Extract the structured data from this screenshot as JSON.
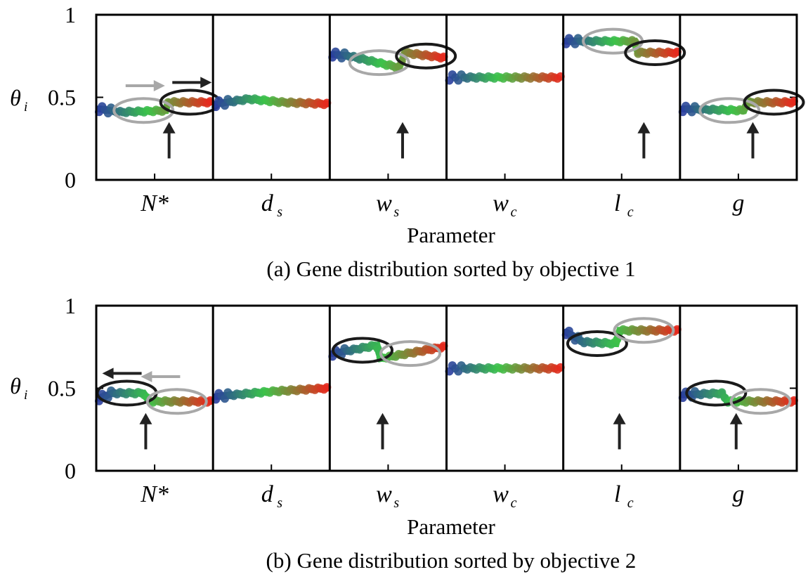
{
  "colors": {
    "low": "#2a3f9e",
    "mid": "#3cc44a",
    "high": "#e62a1e",
    "black_ellipse": "#1a1a1a",
    "gray_ellipse": "#a8a8a8"
  },
  "chart_data": [
    {
      "type": "scatter",
      "caption": "(a) Gene distribution sorted by objective 1",
      "xlabel": "Parameter",
      "ylabel": "θ",
      "ylabel_sub": "i",
      "ylim": [
        0,
        1
      ],
      "yticks": [
        "0",
        "0.5",
        "1"
      ],
      "ytick_values": [
        0,
        0.5,
        1
      ],
      "color_scale": "individuals sorted by objective value: blue → green → red",
      "panels": [
        {
          "param": "N*",
          "sub": "",
          "segments": [
            [
              0.0,
              0.43
            ],
            [
              0.2,
              0.41
            ],
            [
              0.6,
              0.42
            ],
            [
              0.62,
              0.47
            ],
            [
              1.0,
              0.47
            ]
          ],
          "ellipses": [
            {
              "color": "gray",
              "cx": 0.4,
              "cy": 0.42
            },
            {
              "color": "black",
              "cx": 0.82,
              "cy": 0.47
            }
          ],
          "arrows": [
            {
              "dir": "right",
              "color": "gray",
              "y": 0.57
            },
            {
              "dir": "right",
              "color": "black",
              "y": 0.59
            },
            {
              "dir": "up",
              "color": "black",
              "x": 0.63
            }
          ]
        },
        {
          "param": "d",
          "sub": "s",
          "segments": [
            [
              0.0,
              0.46
            ],
            [
              0.3,
              0.49
            ],
            [
              0.6,
              0.47
            ],
            [
              1.0,
              0.46
            ]
          ],
          "ellipses": [],
          "arrows": []
        },
        {
          "param": "w",
          "sub": "s",
          "segments": [
            [
              0.0,
              0.76
            ],
            [
              0.15,
              0.75
            ],
            [
              0.6,
              0.68
            ],
            [
              0.65,
              0.77
            ],
            [
              1.0,
              0.74
            ]
          ],
          "ellipses": [
            {
              "color": "gray",
              "cx": 0.42,
              "cy": 0.71
            },
            {
              "color": "black",
              "cx": 0.84,
              "cy": 0.75
            }
          ],
          "arrows": [
            {
              "dir": "up",
              "color": "black",
              "x": 0.63
            }
          ]
        },
        {
          "param": "w",
          "sub": "c",
          "segments": [
            [
              0.0,
              0.62
            ],
            [
              1.0,
              0.62
            ]
          ],
          "ellipses": [],
          "arrows": []
        },
        {
          "param": "l",
          "sub": "c",
          "segments": [
            [
              0.0,
              0.84
            ],
            [
              0.62,
              0.84
            ],
            [
              0.64,
              0.77
            ],
            [
              1.0,
              0.77
            ]
          ],
          "ellipses": [
            {
              "color": "gray",
              "cx": 0.42,
              "cy": 0.84
            },
            {
              "color": "black",
              "cx": 0.8,
              "cy": 0.77
            }
          ],
          "arrows": [
            {
              "dir": "up",
              "color": "black",
              "x": 0.7
            }
          ]
        },
        {
          "param": "g",
          "sub": "",
          "segments": [
            [
              0.0,
              0.43
            ],
            [
              0.55,
              0.42
            ],
            [
              0.58,
              0.47
            ],
            [
              1.0,
              0.47
            ]
          ],
          "ellipses": [
            {
              "color": "gray",
              "cx": 0.42,
              "cy": 0.42
            },
            {
              "color": "black",
              "cx": 0.82,
              "cy": 0.47
            }
          ],
          "arrows": [
            {
              "dir": "up",
              "color": "black",
              "x": 0.63
            }
          ]
        }
      ]
    },
    {
      "type": "scatter",
      "caption": "(b) Gene distribution sorted by objective 2",
      "xlabel": "Parameter",
      "ylabel": "θ",
      "ylabel_sub": "i",
      "ylim": [
        0,
        1
      ],
      "yticks": [
        "0",
        "0.5",
        "1"
      ],
      "ytick_values": [
        0,
        0.5,
        1
      ],
      "color_scale": "individuals sorted by objective value: blue → green → red",
      "panels": [
        {
          "param": "N*",
          "sub": "",
          "segments": [
            [
              0.0,
              0.44
            ],
            [
              0.12,
              0.47
            ],
            [
              0.4,
              0.47
            ],
            [
              0.45,
              0.42
            ],
            [
              1.0,
              0.42
            ]
          ],
          "ellipses": [
            {
              "color": "black",
              "cx": 0.25,
              "cy": 0.47
            },
            {
              "color": "gray",
              "cx": 0.7,
              "cy": 0.42
            }
          ],
          "arrows": [
            {
              "dir": "left",
              "color": "gray",
              "y": 0.57
            },
            {
              "dir": "left",
              "color": "black",
              "y": 0.59
            },
            {
              "dir": "up",
              "color": "black",
              "x": 0.42
            }
          ]
        },
        {
          "param": "d",
          "sub": "s",
          "segments": [
            [
              0.0,
              0.45
            ],
            [
              0.5,
              0.48
            ],
            [
              1.0,
              0.5
            ]
          ],
          "ellipses": [],
          "arrows": []
        },
        {
          "param": "w",
          "sub": "s",
          "segments": [
            [
              0.0,
              0.71
            ],
            [
              0.4,
              0.76
            ],
            [
              0.43,
              0.68
            ],
            [
              1.0,
              0.75
            ]
          ],
          "ellipses": [
            {
              "color": "black",
              "cx": 0.27,
              "cy": 0.73
            },
            {
              "color": "gray",
              "cx": 0.7,
              "cy": 0.71
            }
          ],
          "arrows": [
            {
              "dir": "up",
              "color": "black",
              "x": 0.45
            }
          ]
        },
        {
          "param": "w",
          "sub": "c",
          "segments": [
            [
              0.0,
              0.62
            ],
            [
              1.0,
              0.62
            ]
          ],
          "ellipses": [],
          "arrows": []
        },
        {
          "param": "l",
          "sub": "c",
          "segments": [
            [
              0.0,
              0.84
            ],
            [
              0.15,
              0.78
            ],
            [
              0.45,
              0.77
            ],
            [
              0.48,
              0.85
            ],
            [
              1.0,
              0.85
            ]
          ],
          "ellipses": [
            {
              "color": "black",
              "cx": 0.28,
              "cy": 0.77
            },
            {
              "color": "gray",
              "cx": 0.7,
              "cy": 0.85
            }
          ],
          "arrows": [
            {
              "dir": "up",
              "color": "black",
              "x": 0.48
            }
          ]
        },
        {
          "param": "g",
          "sub": "",
          "segments": [
            [
              0.0,
              0.46
            ],
            [
              0.35,
              0.47
            ],
            [
              0.4,
              0.42
            ],
            [
              1.0,
              0.42
            ]
          ],
          "ellipses": [
            {
              "color": "black",
              "cx": 0.3,
              "cy": 0.47
            },
            {
              "color": "gray",
              "cx": 0.7,
              "cy": 0.42
            }
          ],
          "arrows": [
            {
              "dir": "up",
              "color": "black",
              "x": 0.48
            }
          ]
        }
      ]
    }
  ]
}
